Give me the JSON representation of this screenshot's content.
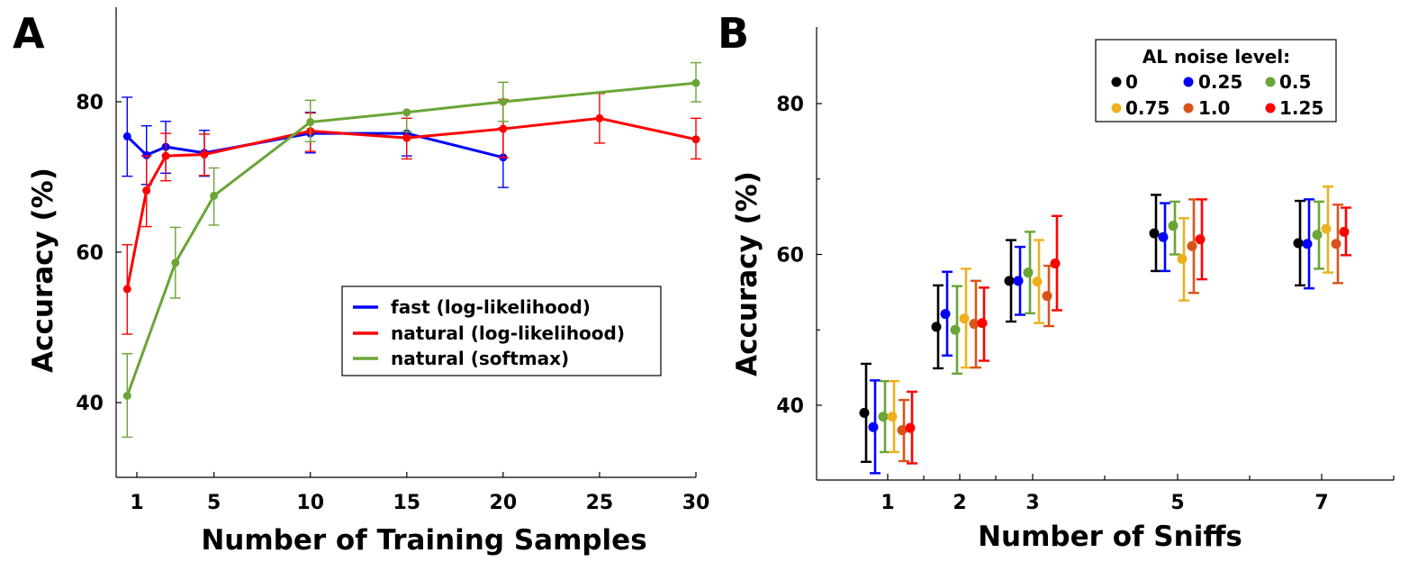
{
  "chart_data": [
    {
      "panel": "A",
      "type": "line",
      "xlabel": "Number of Training Samples",
      "ylabel": "Accuracy (%)",
      "xlim": [
        0,
        30
      ],
      "ylim": [
        30,
        92
      ],
      "xticks": [
        1,
        5,
        10,
        15,
        20,
        25,
        30
      ],
      "yticks": [
        40,
        60,
        80
      ],
      "legend_position": "center-right",
      "series": [
        {
          "name": "fast (log-likelihood)",
          "color": "#0000ff",
          "x": [
            0.5,
            1.5,
            2.5,
            4.5,
            10,
            15,
            20
          ],
          "y": [
            75.4,
            72.9,
            74.0,
            73.2,
            75.8,
            75.8,
            72.6
          ],
          "err_low": [
            70.1,
            69.0,
            70.5,
            70.1,
            73.2,
            72.8,
            68.6
          ],
          "err_high": [
            80.6,
            76.8,
            77.4,
            76.2,
            78.6,
            78.6,
            76.5
          ]
        },
        {
          "name": "natural (log-likelihood)",
          "color": "#ff0000",
          "x": [
            0.5,
            1.5,
            2.5,
            4.5,
            10,
            15,
            20,
            25,
            30
          ],
          "y": [
            55.1,
            68.2,
            72.8,
            73.0,
            76.1,
            75.2,
            76.4,
            77.8,
            75.0
          ],
          "err_low": [
            49.1,
            63.4,
            69.5,
            70.2,
            73.4,
            72.4,
            72.6,
            74.5,
            72.4
          ],
          "err_high": [
            61.0,
            72.8,
            75.8,
            75.7,
            78.5,
            77.8,
            80.3,
            81.1,
            77.8
          ]
        },
        {
          "name": "natural (softmax)",
          "color": "#6aa536",
          "x": [
            0.5,
            3.0,
            5.0,
            10,
            15,
            20,
            30
          ],
          "y": [
            40.9,
            58.6,
            67.5,
            77.3,
            78.6,
            80.0,
            82.5
          ],
          "err_low": [
            35.4,
            53.9,
            63.6,
            74.7,
            76.0,
            77.4,
            80.0
          ],
          "err_high": [
            46.5,
            63.3,
            71.2,
            80.2,
            78.6,
            82.6,
            85.2
          ]
        }
      ]
    },
    {
      "panel": "B",
      "type": "scatter",
      "xlabel": "Number of Sniffs",
      "ylabel": "Accuracy (%)",
      "ylim": [
        30,
        90
      ],
      "yticks": [
        40,
        60,
        80
      ],
      "categories": [
        "1",
        "2",
        "3",
        "5",
        "7"
      ],
      "legend_title": "AL noise level:",
      "legend_position": "top-right",
      "series": [
        {
          "name": "0",
          "color": "#000000",
          "values": [
            39.0,
            50.4,
            56.5,
            62.8,
            61.5
          ],
          "err_low": [
            32.5,
            44.9,
            51.1,
            57.8,
            55.9
          ],
          "err_high": [
            45.5,
            55.9,
            61.9,
            67.9,
            67.1
          ]
        },
        {
          "name": "0.25",
          "color": "#0000ff",
          "values": [
            37.1,
            52.1,
            56.5,
            62.3,
            61.4
          ],
          "err_low": [
            31.0,
            46.6,
            52.0,
            57.8,
            55.5
          ],
          "err_high": [
            43.3,
            57.7,
            61.0,
            66.8,
            67.3
          ]
        },
        {
          "name": "0.5",
          "color": "#6aa536",
          "values": [
            38.5,
            50.0,
            57.6,
            63.8,
            62.6
          ],
          "err_low": [
            33.8,
            44.2,
            52.2,
            60.0,
            58.1
          ],
          "err_high": [
            43.2,
            55.8,
            63.0,
            67.0,
            67.0
          ]
        },
        {
          "name": "0.75",
          "color": "#edb120",
          "values": [
            38.5,
            51.5,
            56.4,
            59.4,
            63.4
          ],
          "err_low": [
            33.8,
            45.0,
            50.9,
            53.9,
            57.6
          ],
          "err_high": [
            43.2,
            58.1,
            61.9,
            64.8,
            69.0
          ]
        },
        {
          "name": "1.0",
          "color": "#d95319",
          "values": [
            36.7,
            50.8,
            54.5,
            61.1,
            61.4
          ],
          "err_low": [
            32.6,
            45.0,
            50.5,
            54.9,
            56.2
          ],
          "err_high": [
            40.7,
            56.5,
            58.5,
            67.3,
            66.6
          ]
        },
        {
          "name": "1.25",
          "color": "#ff0000",
          "values": [
            37.0,
            50.9,
            58.8,
            62.0,
            63.0
          ],
          "err_low": [
            32.3,
            45.9,
            52.6,
            56.7,
            59.9
          ],
          "err_high": [
            41.8,
            55.6,
            65.1,
            67.3,
            66.2
          ]
        }
      ]
    }
  ]
}
